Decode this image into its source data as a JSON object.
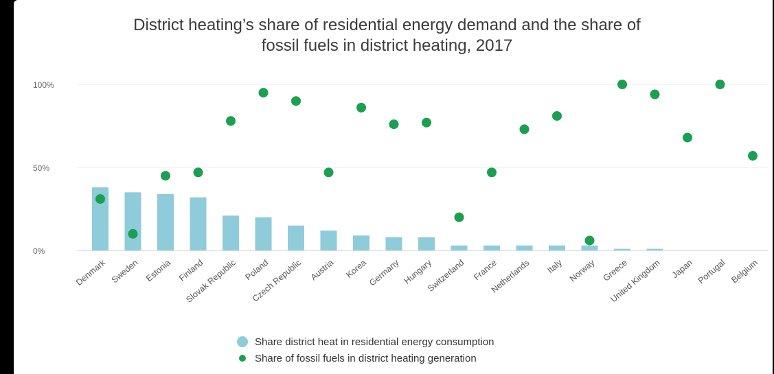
{
  "chart_data": {
    "type": "bar",
    "title_line1": "District heating’s share of residential energy demand and the share of",
    "title_line2": "fossil fuels in district heating, 2017",
    "categories": [
      "Denmark",
      "Sweden",
      "Estonia",
      "Finland",
      "Slovak Republic",
      "Poland",
      "Czech Republic",
      "Austria",
      "Korea",
      "Germany",
      "Hungary",
      "Switzerland",
      "France",
      "Netherlands",
      "Italy",
      "Norway",
      "Greece",
      "United Kingdom",
      "Japan",
      "Portugal",
      "Belgium"
    ],
    "yticks": [
      {
        "value": 0,
        "label": "0%"
      },
      {
        "value": 50,
        "label": "50%"
      },
      {
        "value": 100,
        "label": "100%"
      }
    ],
    "ylim": [
      0,
      100
    ],
    "grid": true,
    "legend_placement": "bottom",
    "series": [
      {
        "name": "Share district heat in residential energy consumption",
        "kind": "bar",
        "color": "#8ecbdb",
        "values": [
          38,
          35,
          34,
          32,
          21,
          20,
          15,
          12,
          9,
          8,
          8,
          3,
          3,
          3,
          3,
          3,
          1,
          1,
          0,
          0,
          0
        ]
      },
      {
        "name": "Share of fossil fuels in district heating generation",
        "kind": "scatter",
        "color": "#1aa050",
        "values": [
          31,
          10,
          45,
          47,
          78,
          95,
          90,
          47,
          86,
          76,
          77,
          20,
          47,
          73,
          81,
          6,
          100,
          94,
          68,
          100,
          57
        ]
      }
    ]
  }
}
